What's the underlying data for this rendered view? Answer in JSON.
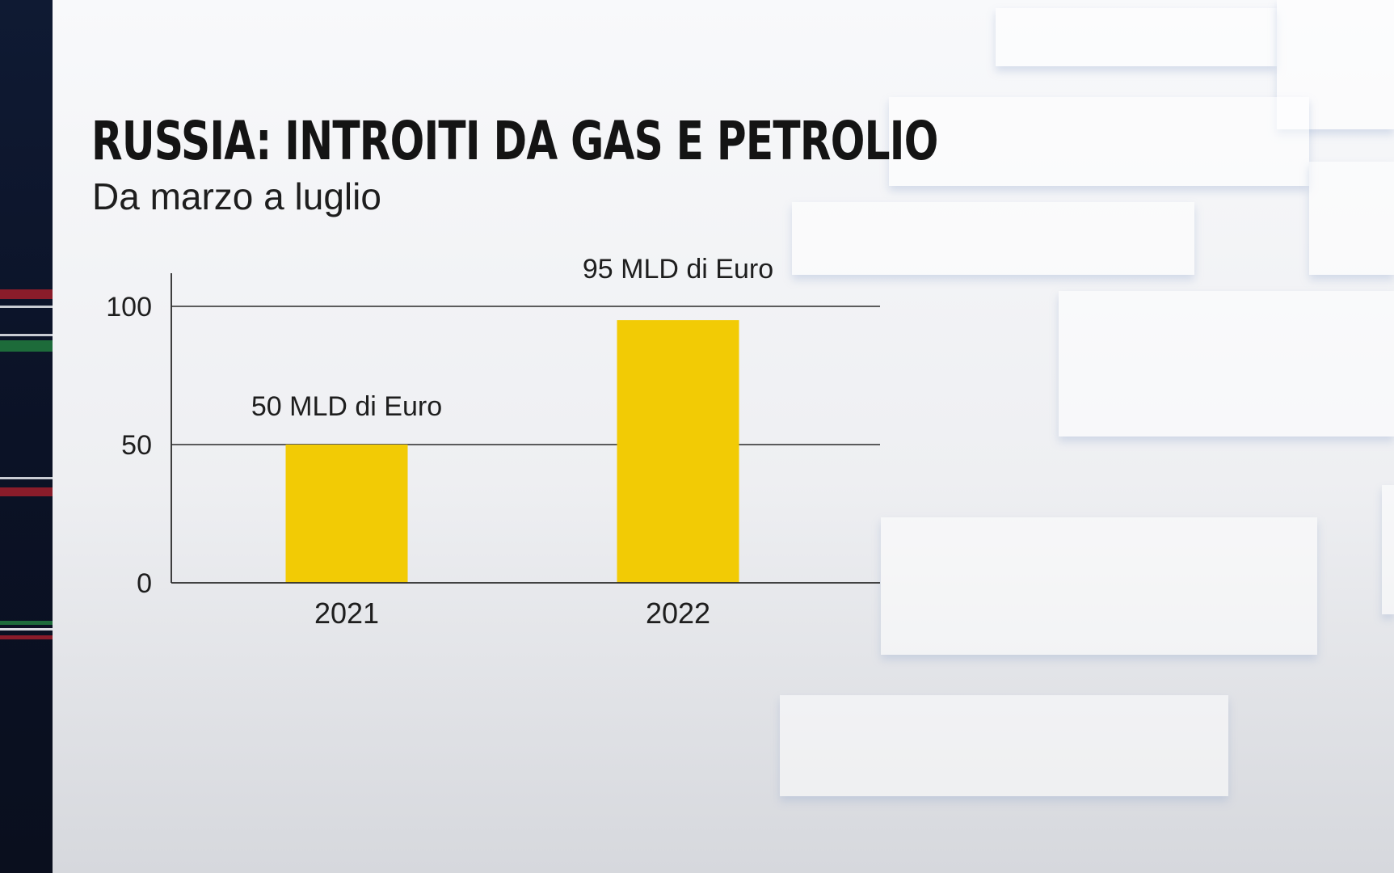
{
  "header": {
    "title": "RUSSIA: INTROITI DA GAS E PETROLIO",
    "subtitle": "Da marzo a luglio"
  },
  "colors": {
    "bar": "#f2cb05",
    "axis": "#2a2a2a",
    "text": "#1e1e1e"
  },
  "chart_data": {
    "type": "bar",
    "title": "RUSSIA: INTROITI DA GAS E PETROLIO",
    "subtitle": "Da marzo a luglio",
    "categories": [
      "2021",
      "2022"
    ],
    "values": [
      50,
      95
    ],
    "data_labels": [
      "50 MLD di Euro",
      "95 MLD di Euro"
    ],
    "yticks": [
      0,
      50,
      100
    ],
    "ylim": [
      0,
      100
    ],
    "xlabel": "",
    "ylabel": "",
    "grid": true,
    "legend": "none"
  }
}
